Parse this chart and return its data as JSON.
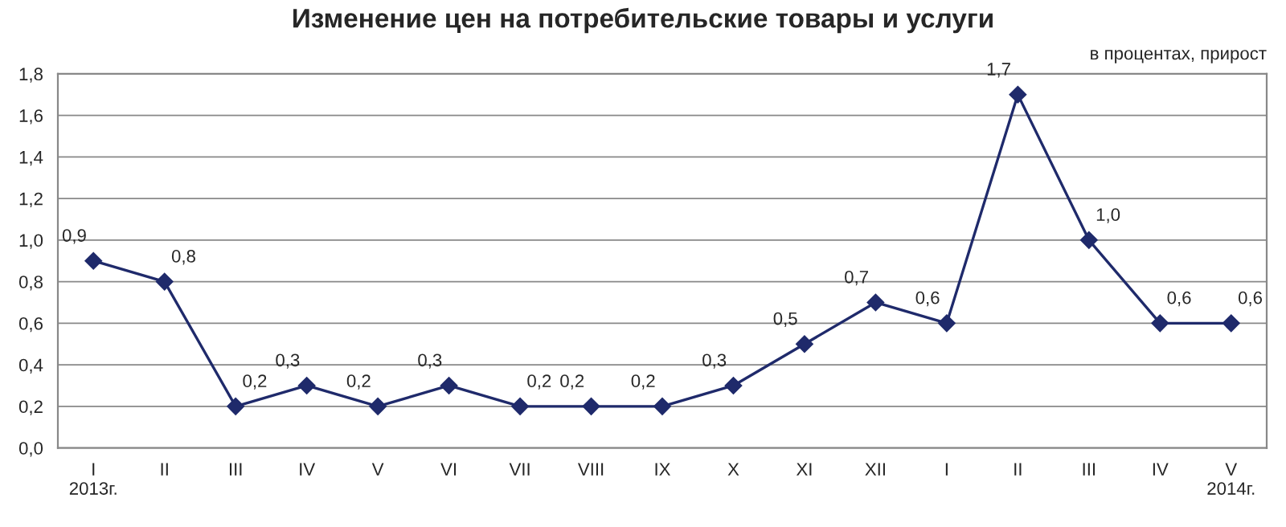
{
  "chart_data": {
    "type": "line",
    "title": "Изменение цен на потребительские товары и услуги",
    "subtitle": "в процентах, прирост",
    "categories": [
      "I\n2013г.",
      "II",
      "III",
      "IV",
      "V",
      "VI",
      "VII",
      "VIII",
      "IX",
      "X",
      "XI",
      "XII",
      "I",
      "II",
      "III",
      "IV",
      "V\n2014г."
    ],
    "series": [
      {
        "color": "#1f2a6b",
        "values": [
          0.9,
          0.8,
          0.2,
          0.3,
          0.2,
          0.3,
          0.2,
          0.2,
          0.2,
          0.3,
          0.5,
          0.7,
          0.6,
          1.7,
          1.0,
          0.6,
          0.6
        ],
        "value_labels": [
          "0,9",
          "0,8",
          "0,2",
          "0,3",
          "0,2",
          "0,3",
          "0,2",
          "0,2",
          "0,2",
          "0,3",
          "0,5",
          "0,7",
          "0,6",
          "1,7",
          "1,0",
          "0,6",
          "0,6"
        ]
      }
    ],
    "ylim": [
      0,
      1.8
    ],
    "yticks": [
      {
        "value": 0,
        "label": "0,0"
      },
      {
        "value": 0.2,
        "label": "0,2"
      },
      {
        "value": 0.4,
        "label": "0,4"
      },
      {
        "value": 0.6,
        "label": "0,6"
      },
      {
        "value": 0.8,
        "label": "0,8"
      },
      {
        "value": 1.0,
        "label": "1,0"
      },
      {
        "value": 1.2,
        "label": "1,2"
      },
      {
        "value": 1.4,
        "label": "1,4"
      },
      {
        "value": 1.6,
        "label": "1,6"
      },
      {
        "value": 1.8,
        "label": "1,8"
      }
    ],
    "grid": "y",
    "marker": "diamond",
    "line_style": "solid",
    "legend": false
  }
}
